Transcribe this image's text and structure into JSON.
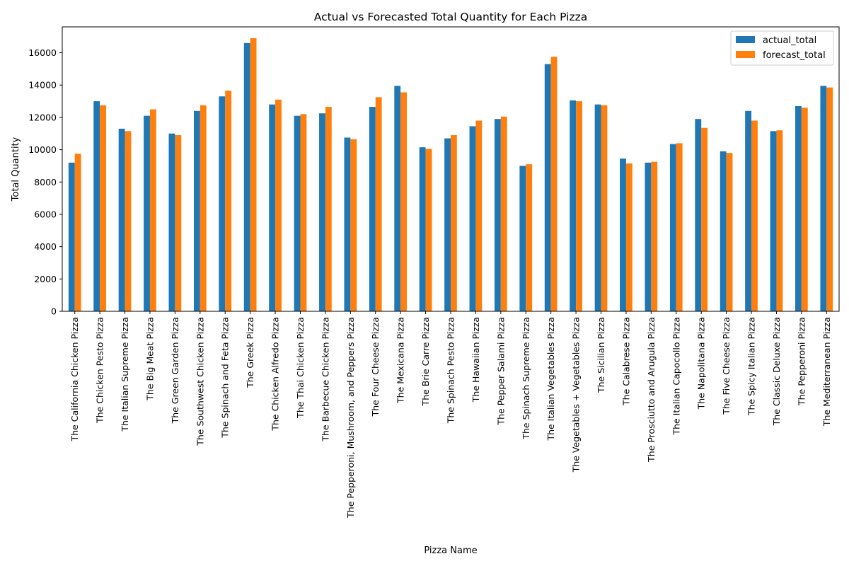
{
  "chart_data": {
    "type": "bar",
    "title": "Actual vs Forecasted Total Quantity for Each Pizza",
    "xlabel": "Pizza Name",
    "ylabel": "Total Quantity",
    "ylim": [
      0,
      17600
    ],
    "yticks": [
      0,
      2000,
      4000,
      6000,
      8000,
      10000,
      12000,
      14000,
      16000
    ],
    "grid": false,
    "legend_position": "top-right",
    "categories": [
      "The California Chicken Pizza",
      "The Chicken Pesto Pizza",
      "The Italian Supreme Pizza",
      "The Big Meat Pizza",
      "The Green Garden Pizza",
      "The Southwest Chicken Pizza",
      "The Spinach and Feta Pizza",
      "The Greek Pizza",
      "The Chicken Alfredo Pizza",
      "The Thai Chicken Pizza",
      "The Barbecue Chicken Pizza",
      "The Pepperoni, Mushroom, and Peppers Pizza",
      "The Four Cheese Pizza",
      "The Mexicana Pizza",
      "The Brie Carre Pizza",
      "The Spinach Pesto Pizza",
      "The Hawaiian Pizza",
      "The Pepper Salami Pizza",
      "The Spinach Supreme Pizza",
      "The Italian Vegetables Pizza",
      "The Vegetables + Vegetables Pizza",
      "The Sicilian Pizza",
      "The Calabrese Pizza",
      "The Prosciutto and Arugula Pizza",
      "The Italian Capocollo Pizza",
      "The Napolitana Pizza",
      "The Five Cheese Pizza",
      "The Spicy Italian Pizza",
      "The Classic Deluxe Pizza",
      "The Pepperoni Pizza",
      "The Mediterranean Pizza"
    ],
    "series": [
      {
        "name": "actual_total",
        "color": "#1f77b4",
        "values": [
          9200,
          13000,
          11300,
          12100,
          11000,
          12400,
          13300,
          16600,
          12800,
          12100,
          12250,
          10750,
          12650,
          13950,
          10150,
          10700,
          11450,
          11900,
          9000,
          15300,
          13050,
          12800,
          9450,
          9200,
          10350,
          11900,
          9900,
          12400,
          11150,
          12700,
          13950
        ]
      },
      {
        "name": "forecast_total",
        "color": "#ff7f0e",
        "values": [
          9750,
          12750,
          11150,
          12500,
          10900,
          12750,
          13650,
          16900,
          13100,
          12200,
          12650,
          10650,
          13250,
          13550,
          10050,
          10900,
          11800,
          12050,
          9100,
          15750,
          13000,
          12750,
          9150,
          9250,
          10400,
          11350,
          9800,
          11800,
          11200,
          12600,
          13850
        ]
      }
    ]
  }
}
